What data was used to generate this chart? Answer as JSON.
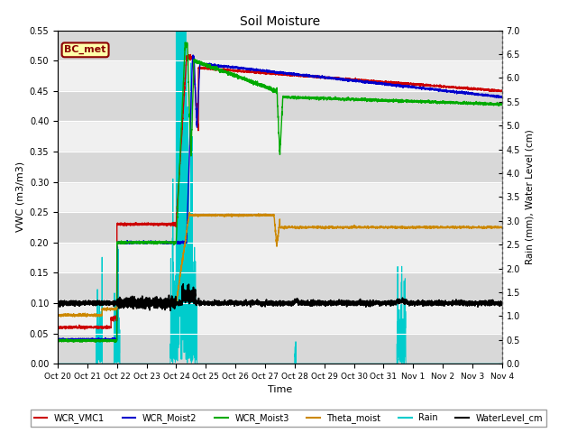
{
  "title": "Soil Moisture",
  "ylabel_left": "VWC (m3/m3)",
  "ylabel_right": "Rain (mm), Water Level (cm)",
  "xlabel": "Time",
  "ylim_left": [
    0.0,
    0.55
  ],
  "ylim_right": [
    0.0,
    7.0
  ],
  "yticks_left": [
    0.0,
    0.05,
    0.1,
    0.15,
    0.2,
    0.25,
    0.3,
    0.35,
    0.4,
    0.45,
    0.5,
    0.55
  ],
  "yticks_right": [
    0.0,
    0.5,
    1.0,
    1.5,
    2.0,
    2.5,
    3.0,
    3.5,
    4.0,
    4.5,
    5.0,
    5.5,
    6.0,
    6.5,
    7.0
  ],
  "fig_bg": "#ffffff",
  "axes_bg": "#f0f0f0",
  "annotation_text": "BC_met",
  "annotation_bg": "#ffffaa",
  "annotation_border": "#8b0000",
  "lines": {
    "WCR_VMC1": {
      "color": "#cc0000",
      "lw": 1.0
    },
    "WCR_Moist2": {
      "color": "#0000cc",
      "lw": 1.0
    },
    "WCR_Moist3": {
      "color": "#00aa00",
      "lw": 1.0
    },
    "Theta_moist": {
      "color": "#cc8800",
      "lw": 1.0
    },
    "Rain": {
      "color": "#00cccc",
      "lw": 0.7
    },
    "WaterLevel_cm": {
      "color": "#000000",
      "lw": 1.2
    }
  },
  "xtick_labels": [
    "Oct 20",
    "Oct 21",
    "Oct 22",
    "Oct 23",
    "Oct 24",
    "Oct 25",
    "Oct 26",
    "Oct 27",
    "Oct 28",
    "Oct 29",
    "Oct 30",
    "Oct 31",
    "Nov 1",
    "Nov 2",
    "Nov 3",
    "Nov 4"
  ],
  "xtick_positions": [
    0,
    1,
    2,
    3,
    4,
    5,
    6,
    7,
    8,
    9,
    10,
    11,
    12,
    13,
    14,
    15
  ]
}
